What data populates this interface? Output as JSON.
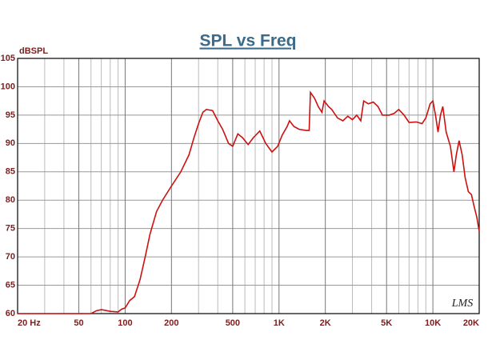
{
  "chart_data": {
    "type": "line",
    "title": "SPL vs Freq",
    "ylabel": "dBSPL",
    "annotation": "LMS",
    "log_x": true,
    "grid": true,
    "xlim": [
      20,
      20000
    ],
    "ylim": [
      60,
      105
    ],
    "xticks": [
      {
        "value": 20,
        "label": "20  Hz"
      },
      50,
      100,
      200,
      500,
      {
        "value": 1000,
        "label": "1K"
      },
      {
        "value": 2000,
        "label": "2K"
      },
      {
        "value": 5000,
        "label": "5K"
      },
      {
        "value": 10000,
        "label": "10K"
      },
      {
        "value": 20000,
        "label": "20K"
      }
    ],
    "x_minor_ticks": [
      30,
      40,
      60,
      70,
      80,
      90,
      300,
      400,
      600,
      700,
      800,
      900,
      3000,
      4000,
      6000,
      7000,
      8000,
      9000
    ],
    "yticks": [
      60,
      65,
      70,
      75,
      80,
      85,
      90,
      95,
      100,
      105
    ],
    "series": [
      {
        "name": "SPL",
        "color": "#cc1111",
        "x": [
          20,
          40,
          60,
          65,
          70,
          80,
          90,
          95,
          100,
          107,
          115,
          125,
          135,
          145,
          160,
          175,
          200,
          230,
          260,
          280,
          300,
          320,
          337,
          370,
          400,
          430,
          470,
          500,
          540,
          580,
          630,
          680,
          750,
          820,
          900,
          980,
          1050,
          1130,
          1170,
          1250,
          1350,
          1500,
          1570,
          1600,
          1700,
          1800,
          1900,
          1963,
          2100,
          2200,
          2400,
          2600,
          2800,
          3000,
          3200,
          3400,
          3550,
          3800,
          4100,
          4400,
          4700,
          5200,
          5600,
          6000,
          6500,
          7000,
          7800,
          8500,
          9000,
          9600,
          10000,
          10400,
          10800,
          11200,
          11600,
          12200,
          13000,
          13700,
          14200,
          14800,
          15500,
          16200,
          17000,
          17800,
          18500,
          19300,
          20000
        ],
        "values": [
          60,
          60,
          60,
          60.5,
          60.7,
          60.4,
          60.3,
          60.8,
          61,
          62.3,
          63,
          66,
          70,
          74,
          78,
          80,
          82.5,
          85,
          88,
          91,
          93.5,
          95.5,
          96,
          95.8,
          94,
          92.5,
          90,
          89.5,
          91.7,
          91,
          89.8,
          91,
          92.2,
          90,
          88.5,
          89.5,
          91.5,
          93,
          94,
          93,
          92.5,
          92.3,
          92.3,
          99,
          98,
          96.5,
          95.5,
          97.5,
          96.5,
          96,
          94.5,
          94,
          94.8,
          94.2,
          95,
          94,
          97.5,
          97,
          97.3,
          96.5,
          95,
          95,
          95.3,
          96,
          95,
          93.7,
          93.8,
          93.5,
          94.5,
          97,
          97.5,
          95,
          92,
          95,
          96.5,
          92,
          89.5,
          85,
          88,
          90.5,
          88,
          84,
          81.5,
          81,
          79,
          77,
          74.5
        ]
      }
    ]
  }
}
